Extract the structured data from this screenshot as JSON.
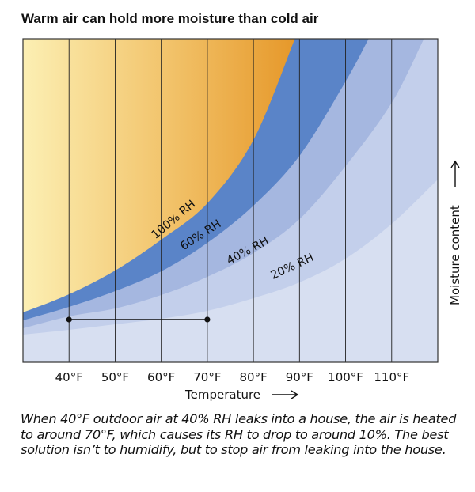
{
  "chart_data": {
    "type": "area",
    "title": "Warm air can hold more moisture than cold air",
    "xlabel": "Temperature",
    "ylabel": "Moisture content",
    "xlim": [
      30,
      120
    ],
    "ylim": [
      0,
      409
    ],
    "x_ticks": [
      40,
      50,
      60,
      70,
      80,
      90,
      100,
      110
    ],
    "x_tick_labels": [
      "40°F",
      "50°F",
      "60°F",
      "70°F",
      "80°F",
      "90°F",
      "100°F",
      "110°F"
    ],
    "grid": "vertical",
    "series": [
      {
        "name": "20% RH",
        "label": "20% RH",
        "color": "#c3cfeb",
        "points": [
          [
            30,
            35
          ],
          [
            40,
            41
          ],
          [
            50,
            48
          ],
          [
            60,
            55
          ],
          [
            70,
            65
          ],
          [
            80,
            81
          ],
          [
            90,
            101
          ],
          [
            100,
            131
          ],
          [
            110,
            175
          ],
          [
            120,
            231
          ]
        ]
      },
      {
        "name": "40% RH",
        "label": "40% RH",
        "color": "#a5b7e0",
        "points": [
          [
            30,
            43
          ],
          [
            40,
            58
          ],
          [
            50,
            68
          ],
          [
            60,
            85
          ],
          [
            70,
            108
          ],
          [
            80,
            138
          ],
          [
            90,
            181
          ],
          [
            100,
            248
          ],
          [
            110,
            328
          ],
          [
            117,
            409
          ]
        ]
      },
      {
        "name": "60% RH",
        "label": "60% RH",
        "color": "#5a84c8",
        "points": [
          [
            30,
            53
          ],
          [
            40,
            70
          ],
          [
            50,
            90
          ],
          [
            60,
            115
          ],
          [
            70,
            151
          ],
          [
            80,
            198
          ],
          [
            90,
            261
          ],
          [
            100,
            355
          ],
          [
            105,
            409
          ]
        ]
      },
      {
        "name": "100% RH",
        "label": "100% RH",
        "color": "#e8a23a",
        "points": [
          [
            30,
            63
          ],
          [
            40,
            86
          ],
          [
            50,
            116
          ],
          [
            60,
            155
          ],
          [
            70,
            201
          ],
          [
            80,
            281
          ],
          [
            89,
            409
          ]
        ]
      }
    ],
    "background_color": "#d7dff1",
    "annotation_segment": {
      "from_temp": 40,
      "to_temp": 70,
      "moisture": 54
    }
  },
  "caption": "When 40°F outdoor air at 40% RH leaks into a house, the air is heated to around 70°F, which causes its RH to drop to around 10%. The best solution isn’t to humidify, but to stop air from leaking into the house."
}
